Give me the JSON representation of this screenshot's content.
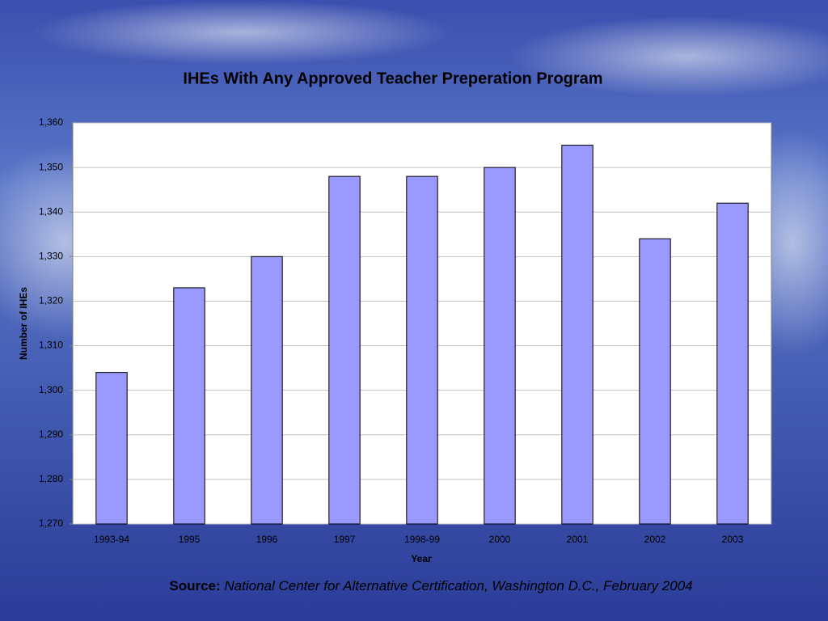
{
  "chart_data": {
    "type": "bar",
    "title": "IHEs With Any Approved Teacher Preperation Program",
    "x_label": "Year",
    "y_label": "Number of IHEs",
    "categories": [
      "1993-94",
      "1995",
      "1996",
      "1997",
      "1998-99",
      "2000",
      "2001",
      "2002",
      "2003"
    ],
    "values": [
      1304,
      1323,
      1330,
      1348,
      1348,
      1350,
      1355,
      1334,
      1342
    ],
    "color": "#9999ff",
    "ylim": [
      1270,
      1360
    ],
    "yticks": [
      {
        "value": 1270,
        "label": "1,270"
      },
      {
        "value": 1280,
        "label": "1,280"
      },
      {
        "value": 1290,
        "label": "1,290"
      },
      {
        "value": 1300,
        "label": "1,300"
      },
      {
        "value": 1310,
        "label": "1,310"
      },
      {
        "value": 1320,
        "label": "1,320"
      },
      {
        "value": 1330,
        "label": "1,330"
      },
      {
        "value": 1340,
        "label": "1,340"
      },
      {
        "value": 1350,
        "label": "1,350"
      },
      {
        "value": 1360,
        "label": "1,360"
      }
    ],
    "grid": true
  },
  "source": {
    "label": "Source:",
    "text": "National Center for Alternative Certification, Washington D.C., February 2004"
  }
}
